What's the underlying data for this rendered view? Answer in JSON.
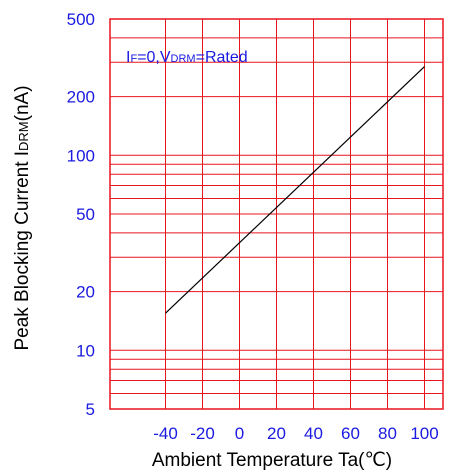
{
  "chart_data": {
    "type": "line",
    "xlabel": "Ambient Temperature Ta(℃)",
    "ylabel": {
      "prefix": "Peak Blocking Current I",
      "sub": "DRM",
      "suffix": "(nA)"
    },
    "annotation": {
      "p1": "I",
      "s1": "F",
      "p2": "=0,V",
      "s2": "DRM",
      "p3": "=Rated"
    },
    "xlim": [
      -70,
      110
    ],
    "ylim": [
      5,
      500
    ],
    "yscale": "log",
    "grid": true,
    "x_ticks": [
      -40,
      -20,
      0,
      20,
      40,
      60,
      80,
      100
    ],
    "y_tick_labels": [
      5,
      10,
      20,
      50,
      100,
      200,
      500
    ],
    "y_minor_gridlines": [
      5,
      6,
      7,
      8,
      9,
      10,
      20,
      30,
      40,
      50,
      60,
      70,
      80,
      90,
      100,
      200,
      300,
      400,
      500
    ],
    "series": [
      {
        "x": [
          -40,
          100
        ],
        "y": [
          15.5,
          285
        ]
      }
    ],
    "colors": {
      "grid": "#e8141e",
      "tick_text": "#1a1ae0",
      "line": "#000000"
    }
  }
}
